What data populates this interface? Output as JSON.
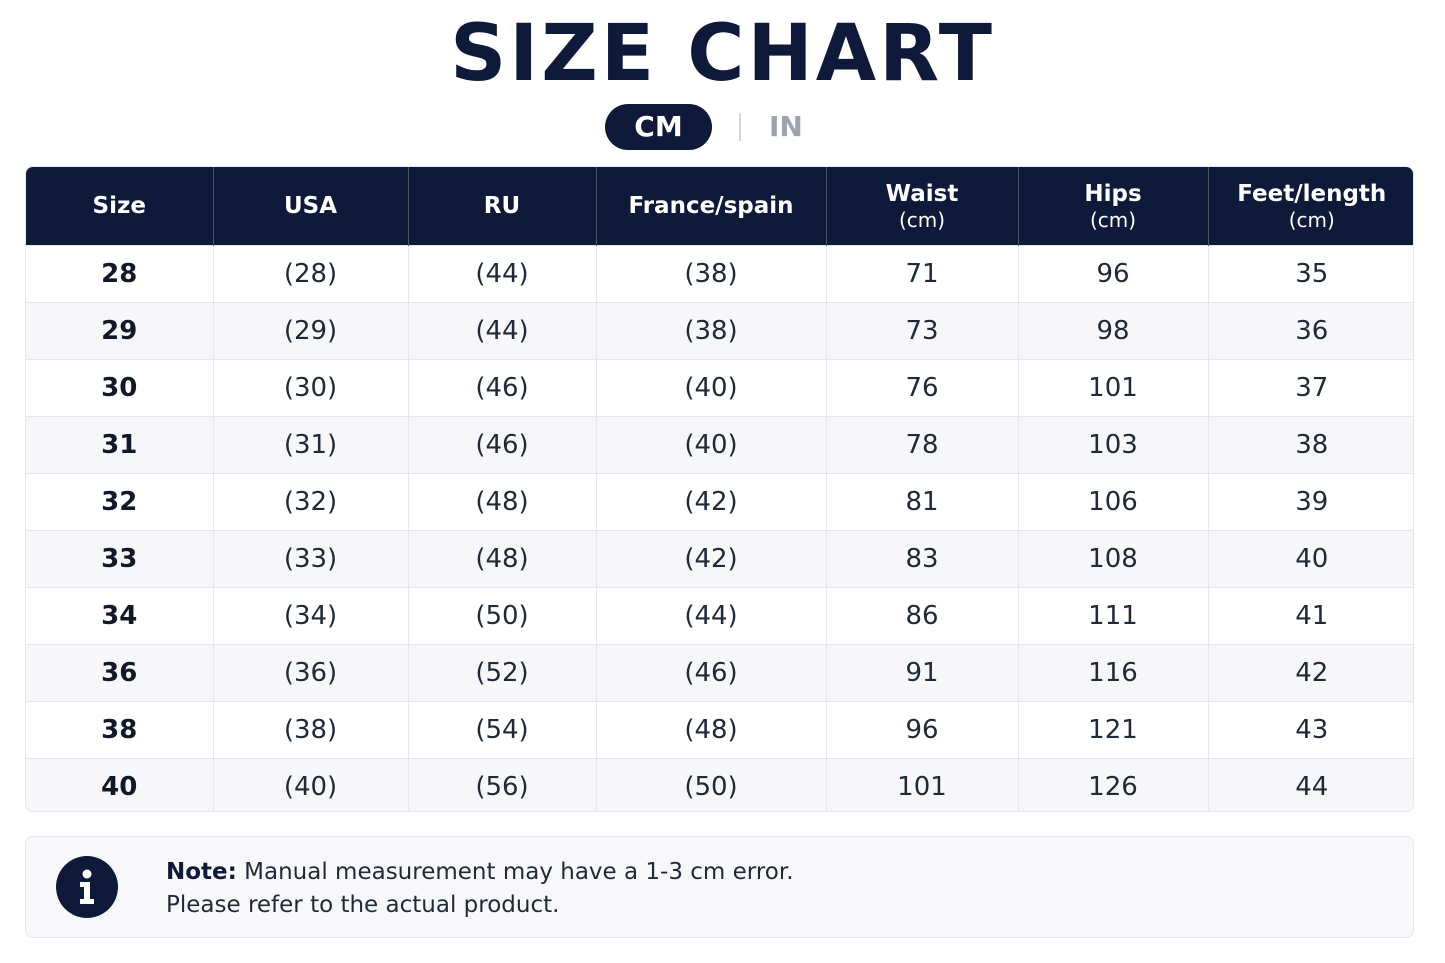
{
  "title": "SIZE CHART",
  "unit_toggle": {
    "active": "CM",
    "inactive": "IN"
  },
  "table": {
    "headers": [
      {
        "label": "Size",
        "sub": ""
      },
      {
        "label": "USA",
        "sub": ""
      },
      {
        "label": "RU",
        "sub": ""
      },
      {
        "label": "France/spain",
        "sub": ""
      },
      {
        "label": "Waist",
        "sub": "(cm)"
      },
      {
        "label": "Hips",
        "sub": "(cm)"
      },
      {
        "label": "Feet/length",
        "sub": "(cm)"
      }
    ],
    "rows": [
      [
        "28",
        "(28)",
        "(44)",
        "(38)",
        "71",
        "96",
        "35"
      ],
      [
        "29",
        "(29)",
        "(44)",
        "(38)",
        "73",
        "98",
        "36"
      ],
      [
        "30",
        "(30)",
        "(46)",
        "(40)",
        "76",
        "101",
        "37"
      ],
      [
        "31",
        "(31)",
        "(46)",
        "(40)",
        "78",
        "103",
        "38"
      ],
      [
        "32",
        "(32)",
        "(48)",
        "(42)",
        "81",
        "106",
        "39"
      ],
      [
        "33",
        "(33)",
        "(48)",
        "(42)",
        "83",
        "108",
        "40"
      ],
      [
        "34",
        "(34)",
        "(50)",
        "(44)",
        "86",
        "111",
        "41"
      ],
      [
        "36",
        "(36)",
        "(52)",
        "(46)",
        "91",
        "116",
        "42"
      ],
      [
        "38",
        "(38)",
        "(54)",
        "(48)",
        "96",
        "121",
        "43"
      ],
      [
        "40",
        "(40)",
        "(56)",
        "(50)",
        "101",
        "126",
        "44"
      ]
    ]
  },
  "note": {
    "label": "Note:",
    "line1": "Manual measurement may have a 1-3 cm error.",
    "line2": "Please refer to the actual product.",
    "icon": "info-icon"
  },
  "colors": {
    "navy": "#0f1a3a",
    "muted": "#9ca3af"
  }
}
